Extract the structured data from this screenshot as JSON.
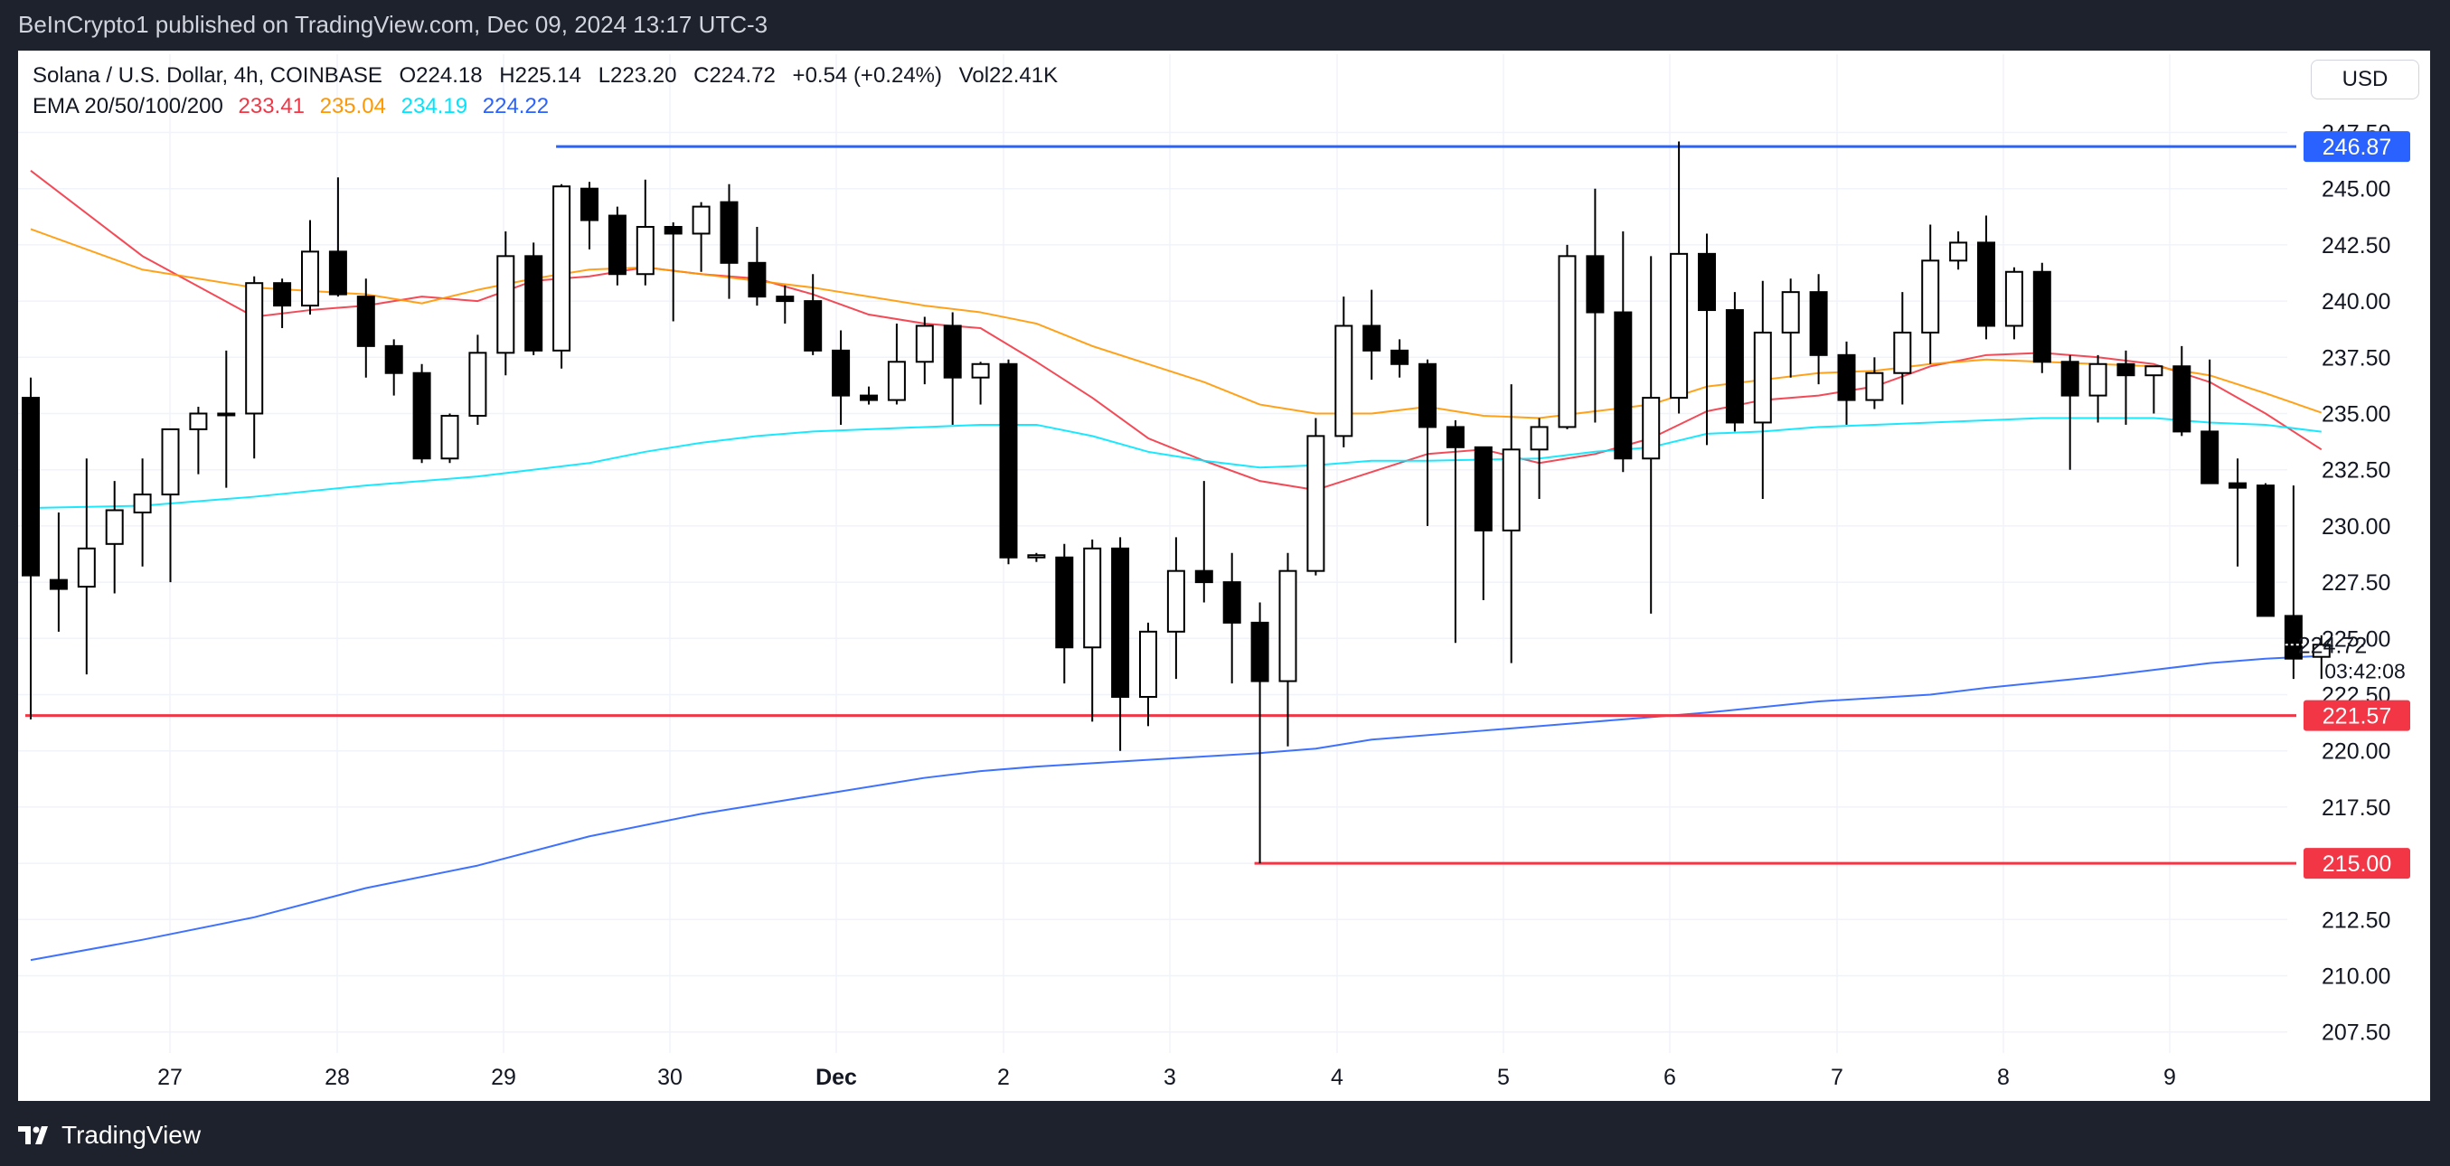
{
  "header": {
    "published": "BeInCrypto1 published on TradingView.com, Dec 09, 2024 13:17 UTC-3"
  },
  "legend": {
    "symbol": "Solana / U.S. Dollar, 4h, COINBASE",
    "open": "O224.18",
    "high": "H225.14",
    "low": "L223.20",
    "close": "C224.72",
    "change": "+0.54 (+0.24%)",
    "volume": "Vol22.41K",
    "ema_label": "EMA 20/50/100/200",
    "ema20": "233.41",
    "ema50": "235.04",
    "ema100": "234.19",
    "ema200": "224.22"
  },
  "currency_button": "USD",
  "footer": {
    "brand": "TradingView"
  },
  "colors": {
    "ema20": "#f23645",
    "ema50": "#ff9800",
    "ema100": "#00e5ff",
    "ema200": "#2962ff",
    "resistance": "#2962ff",
    "support": "#f23645",
    "candle": "#000000"
  },
  "chart_data": {
    "type": "candlestick",
    "timeframe": "4h",
    "x_tick_labels": [
      "27",
      "28",
      "29",
      "30",
      "Dec",
      "2",
      "3",
      "4",
      "5",
      "6",
      "7",
      "8",
      "9"
    ],
    "y_tick_labels": [
      "247.50",
      "245.00",
      "242.50",
      "240.00",
      "237.50",
      "235.00",
      "232.50",
      "230.00",
      "227.50",
      "225.00",
      "222.50",
      "220.00",
      "217.50",
      "215.00",
      "212.50",
      "210.00",
      "207.50"
    ],
    "ylim": [
      205.8,
      248.8
    ],
    "grid": true,
    "candles": [
      {
        "o": 235.7,
        "h": 236.6,
        "l": 221.4,
        "c": 227.8
      },
      {
        "o": 227.6,
        "h": 230.6,
        "l": 225.3,
        "c": 227.2
      },
      {
        "o": 227.3,
        "h": 233.0,
        "l": 223.4,
        "c": 229.0
      },
      {
        "o": 229.2,
        "h": 232.0,
        "l": 227.0,
        "c": 230.7
      },
      {
        "o": 230.6,
        "h": 233.0,
        "l": 228.2,
        "c": 231.4
      },
      {
        "o": 231.4,
        "h": 234.3,
        "l": 227.5,
        "c": 234.3
      },
      {
        "o": 234.3,
        "h": 235.3,
        "l": 232.3,
        "c": 235.0
      },
      {
        "o": 235.0,
        "h": 237.8,
        "l": 231.7,
        "c": 235.0
      },
      {
        "o": 235.0,
        "h": 241.1,
        "l": 233.0,
        "c": 240.8
      },
      {
        "o": 240.8,
        "h": 241.0,
        "l": 238.8,
        "c": 239.8
      },
      {
        "o": 239.8,
        "h": 243.6,
        "l": 239.4,
        "c": 242.2
      },
      {
        "o": 242.2,
        "h": 245.5,
        "l": 240.2,
        "c": 240.3
      },
      {
        "o": 240.2,
        "h": 241.0,
        "l": 236.6,
        "c": 238.0
      },
      {
        "o": 238.0,
        "h": 238.3,
        "l": 235.8,
        "c": 236.8
      },
      {
        "o": 236.8,
        "h": 237.2,
        "l": 232.8,
        "c": 233.0
      },
      {
        "o": 233.0,
        "h": 235.0,
        "l": 232.8,
        "c": 234.9
      },
      {
        "o": 234.9,
        "h": 238.5,
        "l": 234.5,
        "c": 237.7
      },
      {
        "o": 237.7,
        "h": 243.1,
        "l": 236.7,
        "c": 242.0
      },
      {
        "o": 242.0,
        "h": 242.6,
        "l": 237.6,
        "c": 237.8
      },
      {
        "o": 237.8,
        "h": 245.2,
        "l": 237.0,
        "c": 245.1
      },
      {
        "o": 245.0,
        "h": 245.3,
        "l": 242.3,
        "c": 243.6
      },
      {
        "o": 243.8,
        "h": 244.2,
        "l": 240.7,
        "c": 241.2
      },
      {
        "o": 241.2,
        "h": 245.4,
        "l": 240.7,
        "c": 243.3
      },
      {
        "o": 243.3,
        "h": 243.5,
        "l": 239.1,
        "c": 243.0
      },
      {
        "o": 243.0,
        "h": 244.4,
        "l": 241.3,
        "c": 244.2
      },
      {
        "o": 244.4,
        "h": 245.2,
        "l": 240.1,
        "c": 241.7
      },
      {
        "o": 241.7,
        "h": 243.3,
        "l": 239.8,
        "c": 240.2
      },
      {
        "o": 240.2,
        "h": 240.7,
        "l": 239.0,
        "c": 240.0
      },
      {
        "o": 240.0,
        "h": 241.2,
        "l": 237.6,
        "c": 237.8
      },
      {
        "o": 237.8,
        "h": 238.7,
        "l": 234.5,
        "c": 235.8
      },
      {
        "o": 235.8,
        "h": 236.2,
        "l": 235.4,
        "c": 235.6
      },
      {
        "o": 235.6,
        "h": 239.0,
        "l": 235.4,
        "c": 237.3
      },
      {
        "o": 237.3,
        "h": 239.3,
        "l": 236.3,
        "c": 238.9
      },
      {
        "o": 238.9,
        "h": 239.5,
        "l": 234.5,
        "c": 236.6
      },
      {
        "o": 236.6,
        "h": 237.3,
        "l": 235.4,
        "c": 237.2
      },
      {
        "o": 237.2,
        "h": 237.4,
        "l": 228.3,
        "c": 228.6
      },
      {
        "o": 228.6,
        "h": 228.8,
        "l": 228.4,
        "c": 228.7
      },
      {
        "o": 228.6,
        "h": 229.2,
        "l": 223.0,
        "c": 224.6
      },
      {
        "o": 224.6,
        "h": 229.4,
        "l": 221.3,
        "c": 229.0
      },
      {
        "o": 229.0,
        "h": 229.5,
        "l": 220.0,
        "c": 222.4
      },
      {
        "o": 222.4,
        "h": 225.7,
        "l": 221.1,
        "c": 225.3
      },
      {
        "o": 225.3,
        "h": 229.5,
        "l": 223.2,
        "c": 228.0
      },
      {
        "o": 228.0,
        "h": 232.0,
        "l": 226.6,
        "c": 227.5
      },
      {
        "o": 227.5,
        "h": 228.8,
        "l": 223.0,
        "c": 225.7
      },
      {
        "o": 225.7,
        "h": 226.6,
        "l": 215.0,
        "c": 223.1
      },
      {
        "o": 223.1,
        "h": 228.8,
        "l": 220.2,
        "c": 228.0
      },
      {
        "o": 228.0,
        "h": 234.8,
        "l": 227.8,
        "c": 234.0
      },
      {
        "o": 234.0,
        "h": 240.2,
        "l": 233.5,
        "c": 238.9
      },
      {
        "o": 238.9,
        "h": 240.5,
        "l": 236.5,
        "c": 237.8
      },
      {
        "o": 237.8,
        "h": 238.3,
        "l": 236.6,
        "c": 237.2
      },
      {
        "o": 237.2,
        "h": 237.4,
        "l": 230.0,
        "c": 234.4
      },
      {
        "o": 234.4,
        "h": 234.7,
        "l": 224.8,
        "c": 233.5
      },
      {
        "o": 233.5,
        "h": 233.5,
        "l": 226.7,
        "c": 229.8
      },
      {
        "o": 229.8,
        "h": 236.3,
        "l": 223.9,
        "c": 233.4
      },
      {
        "o": 233.4,
        "h": 234.8,
        "l": 231.2,
        "c": 234.4
      },
      {
        "o": 234.4,
        "h": 242.5,
        "l": 234.3,
        "c": 242.0
      },
      {
        "o": 242.0,
        "h": 245.0,
        "l": 234.6,
        "c": 239.5
      },
      {
        "o": 239.5,
        "h": 243.1,
        "l": 232.4,
        "c": 233.0
      },
      {
        "o": 233.0,
        "h": 242.0,
        "l": 226.1,
        "c": 235.7
      },
      {
        "o": 235.7,
        "h": 247.1,
        "l": 235.0,
        "c": 242.1
      },
      {
        "o": 242.1,
        "h": 243.0,
        "l": 233.6,
        "c": 239.6
      },
      {
        "o": 239.6,
        "h": 240.4,
        "l": 234.2,
        "c": 234.6
      },
      {
        "o": 234.6,
        "h": 240.9,
        "l": 231.2,
        "c": 238.6
      },
      {
        "o": 238.6,
        "h": 241.0,
        "l": 236.6,
        "c": 240.4
      },
      {
        "o": 240.4,
        "h": 241.2,
        "l": 236.3,
        "c": 237.6
      },
      {
        "o": 237.6,
        "h": 238.2,
        "l": 234.5,
        "c": 235.6
      },
      {
        "o": 235.6,
        "h": 237.5,
        "l": 235.2,
        "c": 236.8
      },
      {
        "o": 236.8,
        "h": 240.4,
        "l": 235.4,
        "c": 238.6
      },
      {
        "o": 238.6,
        "h": 243.4,
        "l": 237.2,
        "c": 241.8
      },
      {
        "o": 241.8,
        "h": 243.1,
        "l": 241.4,
        "c": 242.6
      },
      {
        "o": 242.6,
        "h": 243.8,
        "l": 238.3,
        "c": 238.9
      },
      {
        "o": 238.9,
        "h": 241.5,
        "l": 238.3,
        "c": 241.3
      },
      {
        "o": 241.3,
        "h": 241.7,
        "l": 236.8,
        "c": 237.3
      },
      {
        "o": 237.3,
        "h": 237.6,
        "l": 232.5,
        "c": 235.8
      },
      {
        "o": 235.8,
        "h": 237.6,
        "l": 234.6,
        "c": 237.2
      },
      {
        "o": 237.2,
        "h": 237.8,
        "l": 234.5,
        "c": 236.7
      },
      {
        "o": 236.7,
        "h": 237.0,
        "l": 235.0,
        "c": 237.1
      },
      {
        "o": 237.1,
        "h": 238.0,
        "l": 234.0,
        "c": 234.2
      },
      {
        "o": 234.2,
        "h": 237.4,
        "l": 231.9,
        "c": 231.9
      },
      {
        "o": 231.9,
        "h": 233.0,
        "l": 228.2,
        "c": 231.7
      },
      {
        "o": 231.8,
        "h": 231.9,
        "l": 226.0,
        "c": 226.0
      },
      {
        "o": 226.0,
        "h": 231.8,
        "l": 223.2,
        "c": 224.1
      },
      {
        "o": 224.18,
        "h": 225.14,
        "l": 223.2,
        "c": 224.72
      }
    ],
    "ema_series": [
      {
        "name": "EMA 20",
        "values": [
          [
            0,
            245.8
          ],
          [
            4,
            242.0
          ],
          [
            8,
            239.3
          ],
          [
            10,
            239.6
          ],
          [
            12,
            239.8
          ],
          [
            14,
            240.2
          ],
          [
            16,
            240.0
          ],
          [
            18,
            240.9
          ],
          [
            20,
            241.1
          ],
          [
            22,
            241.5
          ],
          [
            24,
            241.2
          ],
          [
            26,
            241.0
          ],
          [
            28,
            240.3
          ],
          [
            30,
            239.4
          ],
          [
            32,
            239.0
          ],
          [
            34,
            238.8
          ],
          [
            36,
            237.3
          ],
          [
            38,
            235.7
          ],
          [
            40,
            233.9
          ],
          [
            42,
            232.9
          ],
          [
            44,
            232.0
          ],
          [
            46,
            231.6
          ],
          [
            48,
            232.4
          ],
          [
            50,
            233.2
          ],
          [
            52,
            233.4
          ],
          [
            54,
            232.8
          ],
          [
            56,
            233.2
          ],
          [
            58,
            233.9
          ],
          [
            60,
            235.1
          ],
          [
            62,
            235.6
          ],
          [
            64,
            235.8
          ],
          [
            66,
            236.2
          ],
          [
            68,
            237.1
          ],
          [
            70,
            237.6
          ],
          [
            72,
            237.7
          ],
          [
            74,
            237.5
          ],
          [
            76,
            237.2
          ],
          [
            78,
            236.4
          ],
          [
            80,
            235.0
          ],
          [
            82,
            233.4
          ]
        ]
      },
      {
        "name": "EMA 50",
        "values": [
          [
            0,
            243.2
          ],
          [
            4,
            241.4
          ],
          [
            8,
            240.6
          ],
          [
            12,
            240.3
          ],
          [
            14,
            239.9
          ],
          [
            16,
            240.5
          ],
          [
            18,
            241.0
          ],
          [
            20,
            241.4
          ],
          [
            22,
            241.5
          ],
          [
            24,
            241.2
          ],
          [
            26,
            240.9
          ],
          [
            28,
            240.6
          ],
          [
            30,
            240.2
          ],
          [
            32,
            239.8
          ],
          [
            34,
            239.5
          ],
          [
            36,
            239.0
          ],
          [
            38,
            238.0
          ],
          [
            40,
            237.2
          ],
          [
            42,
            236.4
          ],
          [
            44,
            235.4
          ],
          [
            46,
            235.0
          ],
          [
            48,
            235.0
          ],
          [
            50,
            235.3
          ],
          [
            52,
            234.9
          ],
          [
            54,
            234.8
          ],
          [
            56,
            235.1
          ],
          [
            58,
            235.4
          ],
          [
            60,
            236.2
          ],
          [
            62,
            236.5
          ],
          [
            64,
            236.8
          ],
          [
            66,
            236.9
          ],
          [
            68,
            237.2
          ],
          [
            70,
            237.4
          ],
          [
            72,
            237.3
          ],
          [
            74,
            237.2
          ],
          [
            76,
            237.1
          ],
          [
            78,
            236.7
          ],
          [
            80,
            235.9
          ],
          [
            82,
            235.04
          ]
        ]
      },
      {
        "name": "EMA 100",
        "values": [
          [
            0,
            230.8
          ],
          [
            4,
            230.9
          ],
          [
            8,
            231.3
          ],
          [
            12,
            231.8
          ],
          [
            16,
            232.2
          ],
          [
            20,
            232.8
          ],
          [
            22,
            233.3
          ],
          [
            24,
            233.7
          ],
          [
            26,
            234.0
          ],
          [
            28,
            234.2
          ],
          [
            30,
            234.3
          ],
          [
            34,
            234.5
          ],
          [
            36,
            234.5
          ],
          [
            38,
            234.0
          ],
          [
            40,
            233.3
          ],
          [
            42,
            232.9
          ],
          [
            44,
            232.6
          ],
          [
            46,
            232.7
          ],
          [
            48,
            232.9
          ],
          [
            50,
            232.9
          ],
          [
            54,
            233.0
          ],
          [
            56,
            233.3
          ],
          [
            58,
            233.5
          ],
          [
            60,
            234.1
          ],
          [
            62,
            234.2
          ],
          [
            64,
            234.4
          ],
          [
            66,
            234.5
          ],
          [
            70,
            234.7
          ],
          [
            72,
            234.8
          ],
          [
            74,
            234.8
          ],
          [
            76,
            234.8
          ],
          [
            78,
            234.6
          ],
          [
            80,
            234.5
          ],
          [
            82,
            234.19
          ]
        ]
      },
      {
        "name": "EMA 200",
        "values": [
          [
            0,
            210.7
          ],
          [
            4,
            211.6
          ],
          [
            8,
            212.6
          ],
          [
            12,
            213.9
          ],
          [
            16,
            214.9
          ],
          [
            20,
            216.2
          ],
          [
            24,
            217.2
          ],
          [
            28,
            218.0
          ],
          [
            32,
            218.8
          ],
          [
            34,
            219.1
          ],
          [
            36,
            219.3
          ],
          [
            40,
            219.6
          ],
          [
            44,
            219.9
          ],
          [
            46,
            220.1
          ],
          [
            48,
            220.5
          ],
          [
            52,
            220.9
          ],
          [
            56,
            221.3
          ],
          [
            58,
            221.5
          ],
          [
            60,
            221.7
          ],
          [
            64,
            222.2
          ],
          [
            68,
            222.5
          ],
          [
            70,
            222.8
          ],
          [
            74,
            223.3
          ],
          [
            76,
            223.6
          ],
          [
            78,
            223.9
          ],
          [
            80,
            224.1
          ],
          [
            82,
            224.22
          ]
        ]
      }
    ],
    "levels": [
      {
        "name": "resistance",
        "value": 246.87,
        "label": "246.87",
        "from_index": 19
      },
      {
        "name": "support-1",
        "value": 221.57,
        "label": "221.57",
        "from_index": 0
      },
      {
        "name": "support-2",
        "value": 215.0,
        "label": "215.00",
        "from_index": 44
      }
    ],
    "last_price_label": "224.72",
    "countdown_label": "03:42:08"
  }
}
